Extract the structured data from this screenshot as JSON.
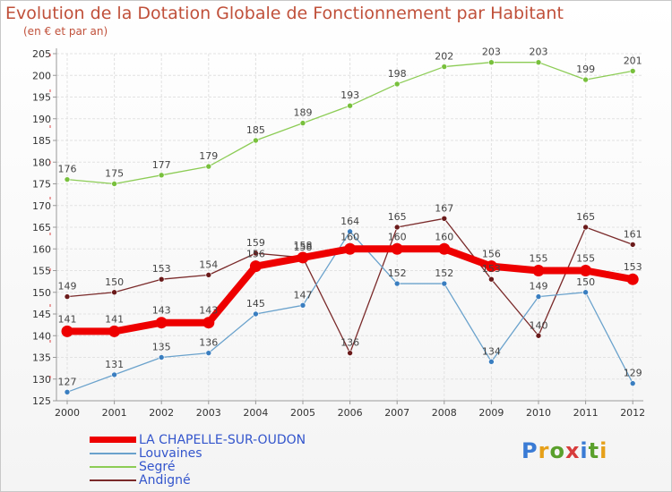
{
  "header": {
    "title": "Evolution de la Dotation Globale de Fonctionnement par Habitant",
    "subtitle": "(en € et par an)"
  },
  "logo": {
    "text": "Proxiti",
    "colors": [
      "#3a7bd5",
      "#e6a019",
      "#5aa02c",
      "#d73c3c",
      "#3a7bd5",
      "#5aa02c",
      "#e6a019"
    ]
  },
  "chart_data": {
    "type": "line",
    "title": "Evolution de la Dotation Globale de Fonctionnement par Habitant",
    "subtitle": "(en € et par an)",
    "xlabel": "",
    "ylabel": "",
    "x": [
      "2000",
      "2001",
      "2002",
      "2003",
      "2004",
      "2005",
      "2006",
      "2007",
      "2008",
      "2009",
      "2010",
      "2011",
      "2012"
    ],
    "ylim": [
      125,
      205
    ],
    "yticks": [
      125,
      130,
      135,
      140,
      145,
      150,
      155,
      160,
      165,
      170,
      175,
      180,
      185,
      190,
      195,
      200,
      205
    ],
    "grid": true,
    "legend_position": "bottom-left",
    "series": [
      {
        "name": "Segré",
        "color": "#8ccc55",
        "point_color": "#78c03c",
        "width": 1.3,
        "radius": 3,
        "values": [
          176,
          175,
          177,
          179,
          185,
          189,
          193,
          198,
          202,
          203,
          203,
          199,
          201
        ]
      },
      {
        "name": "Andigné",
        "color": "#7a2a2a",
        "point_color": "#6a1a1a",
        "width": 1.3,
        "radius": 3,
        "values": [
          149,
          150,
          153,
          154,
          159,
          158,
          136,
          165,
          167,
          153,
          140,
          165,
          161
        ]
      },
      {
        "name": "Louvaines",
        "color": "#6aa2cc",
        "point_color": "#3a7ec0",
        "width": 1.3,
        "radius": 3,
        "values": [
          127,
          131,
          135,
          136,
          145,
          147,
          164,
          152,
          152,
          134,
          149,
          150,
          129
        ]
      },
      {
        "name": "LA CHAPELLE-SUR-OUDON",
        "color": "#ee0000",
        "point_color": "#ee0000",
        "width": 8,
        "radius": 6.5,
        "values": [
          141,
          141,
          143,
          143,
          156,
          158,
          160,
          160,
          160,
          156,
          155,
          155,
          153
        ]
      }
    ],
    "data_labels": {
      "Segré": [
        "176",
        "175",
        "177",
        "179",
        "185",
        "189",
        "193",
        "198",
        "202",
        "203",
        "203",
        "199",
        "201"
      ],
      "Andigné": [
        "149",
        "150",
        "153",
        "154",
        "159",
        "158",
        "136",
        "165",
        "167",
        "153",
        "140",
        "165",
        "161"
      ],
      "Louvaines": [
        "127",
        "131",
        "135",
        "136",
        "145",
        "147",
        "164",
        "152",
        "152",
        "134",
        "149",
        "150",
        "129"
      ],
      "LA CHAPELLE-SUR-OUDON": [
        "141",
        "141",
        "143",
        "143",
        "156",
        "158",
        "160",
        "160",
        "160",
        "156",
        "155",
        "155",
        "153"
      ]
    }
  },
  "legend": {
    "items": [
      {
        "label": "LA CHAPELLE-SUR-OUDON",
        "color": "#ee0000",
        "thick": true
      },
      {
        "label": "Louvaines",
        "color": "#6aa2cc",
        "thick": false
      },
      {
        "label": "Segré",
        "color": "#8ccc55",
        "thick": false
      },
      {
        "label": "Andigné",
        "color": "#7a2a2a",
        "thick": false
      }
    ]
  }
}
